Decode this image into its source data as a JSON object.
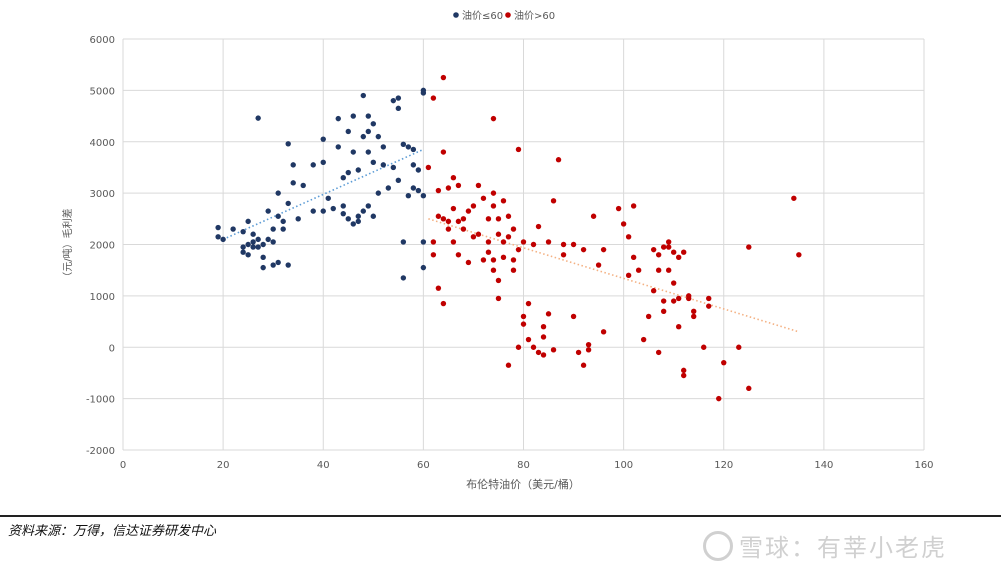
{
  "chart_data": {
    "type": "scatter",
    "title": "",
    "xlabel": "布伦特油价（美元/桶）",
    "ylabel": "（元/吨）毛利差",
    "xlim": [
      0,
      160
    ],
    "ylim": [
      -2000,
      6000
    ],
    "xticks": [
      0,
      20,
      40,
      60,
      80,
      100,
      120,
      140,
      160
    ],
    "yticks": [
      -2000,
      -1000,
      0,
      1000,
      2000,
      3000,
      4000,
      5000,
      6000
    ],
    "grid": "vertical",
    "legend_position": "top-center",
    "series": [
      {
        "name": "油价≤60",
        "color": "#203864",
        "trendline": {
          "x": [
            20,
            60
          ],
          "y": [
            2100,
            3850
          ],
          "color": "#5b9bd5"
        },
        "points": [
          [
            19,
            2330
          ],
          [
            19,
            2150
          ],
          [
            20,
            2100
          ],
          [
            22,
            2300
          ],
          [
            24,
            2250
          ],
          [
            24,
            1850
          ],
          [
            24,
            1950
          ],
          [
            25,
            2000
          ],
          [
            25,
            1800
          ],
          [
            25,
            2450
          ],
          [
            26,
            2050
          ],
          [
            26,
            1950
          ],
          [
            26,
            2200
          ],
          [
            27,
            4460
          ],
          [
            27,
            1950
          ],
          [
            27,
            2100
          ],
          [
            28,
            1550
          ],
          [
            28,
            1750
          ],
          [
            28,
            2000
          ],
          [
            29,
            2100
          ],
          [
            29,
            2650
          ],
          [
            30,
            2300
          ],
          [
            30,
            2050
          ],
          [
            30,
            1600
          ],
          [
            31,
            2550
          ],
          [
            31,
            1650
          ],
          [
            31,
            3000
          ],
          [
            32,
            2450
          ],
          [
            32,
            2300
          ],
          [
            33,
            1600
          ],
          [
            33,
            2800
          ],
          [
            33,
            3960
          ],
          [
            34,
            3550
          ],
          [
            34,
            3200
          ],
          [
            35,
            2500
          ],
          [
            36,
            3150
          ],
          [
            38,
            3550
          ],
          [
            38,
            2650
          ],
          [
            40,
            2650
          ],
          [
            40,
            3600
          ],
          [
            40,
            4050
          ],
          [
            41,
            2900
          ],
          [
            42,
            2700
          ],
          [
            43,
            3900
          ],
          [
            43,
            4450
          ],
          [
            44,
            2600
          ],
          [
            44,
            2750
          ],
          [
            44,
            3300
          ],
          [
            45,
            3400
          ],
          [
            45,
            4200
          ],
          [
            45,
            2500
          ],
          [
            46,
            2400
          ],
          [
            46,
            3800
          ],
          [
            46,
            4500
          ],
          [
            47,
            2550
          ],
          [
            47,
            3450
          ],
          [
            47,
            2450
          ],
          [
            48,
            4900
          ],
          [
            48,
            4100
          ],
          [
            48,
            2650
          ],
          [
            49,
            3800
          ],
          [
            49,
            4200
          ],
          [
            49,
            4500
          ],
          [
            49,
            2750
          ],
          [
            50,
            3600
          ],
          [
            50,
            4350
          ],
          [
            50,
            2550
          ],
          [
            51,
            3000
          ],
          [
            51,
            4100
          ],
          [
            52,
            3900
          ],
          [
            52,
            3550
          ],
          [
            53,
            3100
          ],
          [
            54,
            4800
          ],
          [
            54,
            3500
          ],
          [
            55,
            4650
          ],
          [
            55,
            4850
          ],
          [
            55,
            3250
          ],
          [
            56,
            2050
          ],
          [
            56,
            3950
          ],
          [
            56,
            1350
          ],
          [
            57,
            2950
          ],
          [
            57,
            3900
          ],
          [
            58,
            3100
          ],
          [
            58,
            3850
          ],
          [
            58,
            3550
          ],
          [
            59,
            3050
          ],
          [
            59,
            3450
          ],
          [
            60,
            2950
          ],
          [
            60,
            4950
          ],
          [
            60,
            5000
          ],
          [
            60,
            2050
          ],
          [
            60,
            1550
          ]
        ]
      },
      {
        "name": "油价>60",
        "color": "#c00000",
        "trendline": {
          "x": [
            61,
            135
          ],
          "y": [
            2500,
            300
          ],
          "color": "#f4b183"
        },
        "points": [
          [
            61,
            3500
          ],
          [
            62,
            2050
          ],
          [
            62,
            1800
          ],
          [
            62,
            4850
          ],
          [
            63,
            2550
          ],
          [
            63,
            3050
          ],
          [
            63,
            1150
          ],
          [
            64,
            3800
          ],
          [
            64,
            5250
          ],
          [
            64,
            2500
          ],
          [
            64,
            850
          ],
          [
            65,
            2450
          ],
          [
            65,
            3100
          ],
          [
            65,
            2300
          ],
          [
            66,
            2700
          ],
          [
            66,
            3300
          ],
          [
            66,
            2050
          ],
          [
            67,
            3150
          ],
          [
            67,
            1800
          ],
          [
            67,
            2450
          ],
          [
            68,
            2500
          ],
          [
            68,
            2300
          ],
          [
            69,
            1650
          ],
          [
            69,
            2650
          ],
          [
            70,
            2150
          ],
          [
            70,
            2750
          ],
          [
            71,
            2200
          ],
          [
            71,
            3150
          ],
          [
            72,
            1700
          ],
          [
            72,
            2900
          ],
          [
            73,
            2050
          ],
          [
            73,
            2500
          ],
          [
            73,
            1850
          ],
          [
            74,
            2750
          ],
          [
            74,
            4450
          ],
          [
            74,
            1500
          ],
          [
            74,
            3000
          ],
          [
            74,
            1700
          ],
          [
            75,
            1300
          ],
          [
            75,
            2200
          ],
          [
            75,
            950
          ],
          [
            75,
            2500
          ],
          [
            76,
            1750
          ],
          [
            76,
            2050
          ],
          [
            76,
            2850
          ],
          [
            77,
            -350
          ],
          [
            77,
            2550
          ],
          [
            77,
            2150
          ],
          [
            78,
            1700
          ],
          [
            78,
            2300
          ],
          [
            78,
            1500
          ],
          [
            79,
            1900
          ],
          [
            79,
            3850
          ],
          [
            79,
            0
          ],
          [
            80,
            2050
          ],
          [
            80,
            600
          ],
          [
            80,
            450
          ],
          [
            81,
            150
          ],
          [
            81,
            850
          ],
          [
            82,
            2000
          ],
          [
            82,
            0
          ],
          [
            83,
            2350
          ],
          [
            83,
            -100
          ],
          [
            84,
            400
          ],
          [
            84,
            -150
          ],
          [
            84,
            200
          ],
          [
            85,
            2050
          ],
          [
            85,
            650
          ],
          [
            86,
            -50
          ],
          [
            86,
            2850
          ],
          [
            87,
            3650
          ],
          [
            88,
            2000
          ],
          [
            88,
            1800
          ],
          [
            90,
            600
          ],
          [
            90,
            2000
          ],
          [
            91,
            -100
          ],
          [
            92,
            1900
          ],
          [
            92,
            -350
          ],
          [
            93,
            -50
          ],
          [
            93,
            50
          ],
          [
            94,
            2550
          ],
          [
            95,
            1600
          ],
          [
            96,
            1900
          ],
          [
            96,
            300
          ],
          [
            99,
            2700
          ],
          [
            100,
            2400
          ],
          [
            101,
            1400
          ],
          [
            101,
            2150
          ],
          [
            102,
            1750
          ],
          [
            102,
            2750
          ],
          [
            103,
            1500
          ],
          [
            104,
            150
          ],
          [
            105,
            600
          ],
          [
            106,
            1100
          ],
          [
            106,
            1900
          ],
          [
            107,
            1800
          ],
          [
            107,
            1500
          ],
          [
            107,
            -100
          ],
          [
            108,
            1950
          ],
          [
            108,
            900
          ],
          [
            108,
            700
          ],
          [
            109,
            1950
          ],
          [
            109,
            2050
          ],
          [
            109,
            1500
          ],
          [
            110,
            1850
          ],
          [
            110,
            1250
          ],
          [
            110,
            900
          ],
          [
            111,
            1750
          ],
          [
            111,
            950
          ],
          [
            111,
            400
          ],
          [
            112,
            -450
          ],
          [
            112,
            1850
          ],
          [
            112,
            -550
          ],
          [
            113,
            950
          ],
          [
            113,
            1000
          ],
          [
            114,
            600
          ],
          [
            114,
            700
          ],
          [
            116,
            0
          ],
          [
            117,
            950
          ],
          [
            117,
            800
          ],
          [
            119,
            -1000
          ],
          [
            120,
            -300
          ],
          [
            123,
            0
          ],
          [
            125,
            1950
          ],
          [
            125,
            -800
          ],
          [
            134,
            2900
          ],
          [
            135,
            1800
          ]
        ]
      }
    ]
  },
  "footer": {
    "source": "资料来源：万得，信达证券研发中心",
    "watermark": "雪球：有莘小老虎"
  }
}
